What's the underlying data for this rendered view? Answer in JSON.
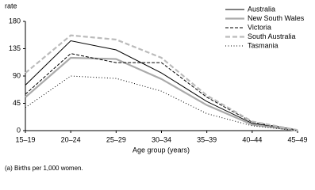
{
  "chart_data": {
    "type": "line",
    "y_label": "rate",
    "x_label": "Age group (years)",
    "footnote": "(a) Births per 1,000 women.",
    "categories": [
      "15–19",
      "20–24",
      "25–29",
      "30–34",
      "35–39",
      "40–44",
      "45–49"
    ],
    "series": [
      {
        "name": "Australia",
        "color": "#000000",
        "style": "solid",
        "values": [
          75,
          148,
          133,
          95,
          48,
          12,
          1
        ]
      },
      {
        "name": "New South Wales",
        "color": "#aaaaaa",
        "style": "solid-thick",
        "values": [
          55,
          120,
          118,
          85,
          42,
          10,
          0
        ]
      },
      {
        "name": "Victoria",
        "color": "#000000",
        "style": "dashed",
        "values": [
          60,
          127,
          112,
          112,
          55,
          14,
          1
        ]
      },
      {
        "name": "South Australia",
        "color": "#bbbbbb",
        "style": "dashed-thick",
        "values": [
          95,
          157,
          150,
          120,
          58,
          15,
          1
        ]
      },
      {
        "name": "Tasmania",
        "color": "#000000",
        "style": "dotted",
        "values": [
          38,
          90,
          86,
          65,
          28,
          8,
          0
        ]
      }
    ],
    "ylim": [
      0,
      180
    ],
    "yticks": [
      0,
      45,
      90,
      135,
      180
    ],
    "legend": "top-right",
    "grid": false
  }
}
